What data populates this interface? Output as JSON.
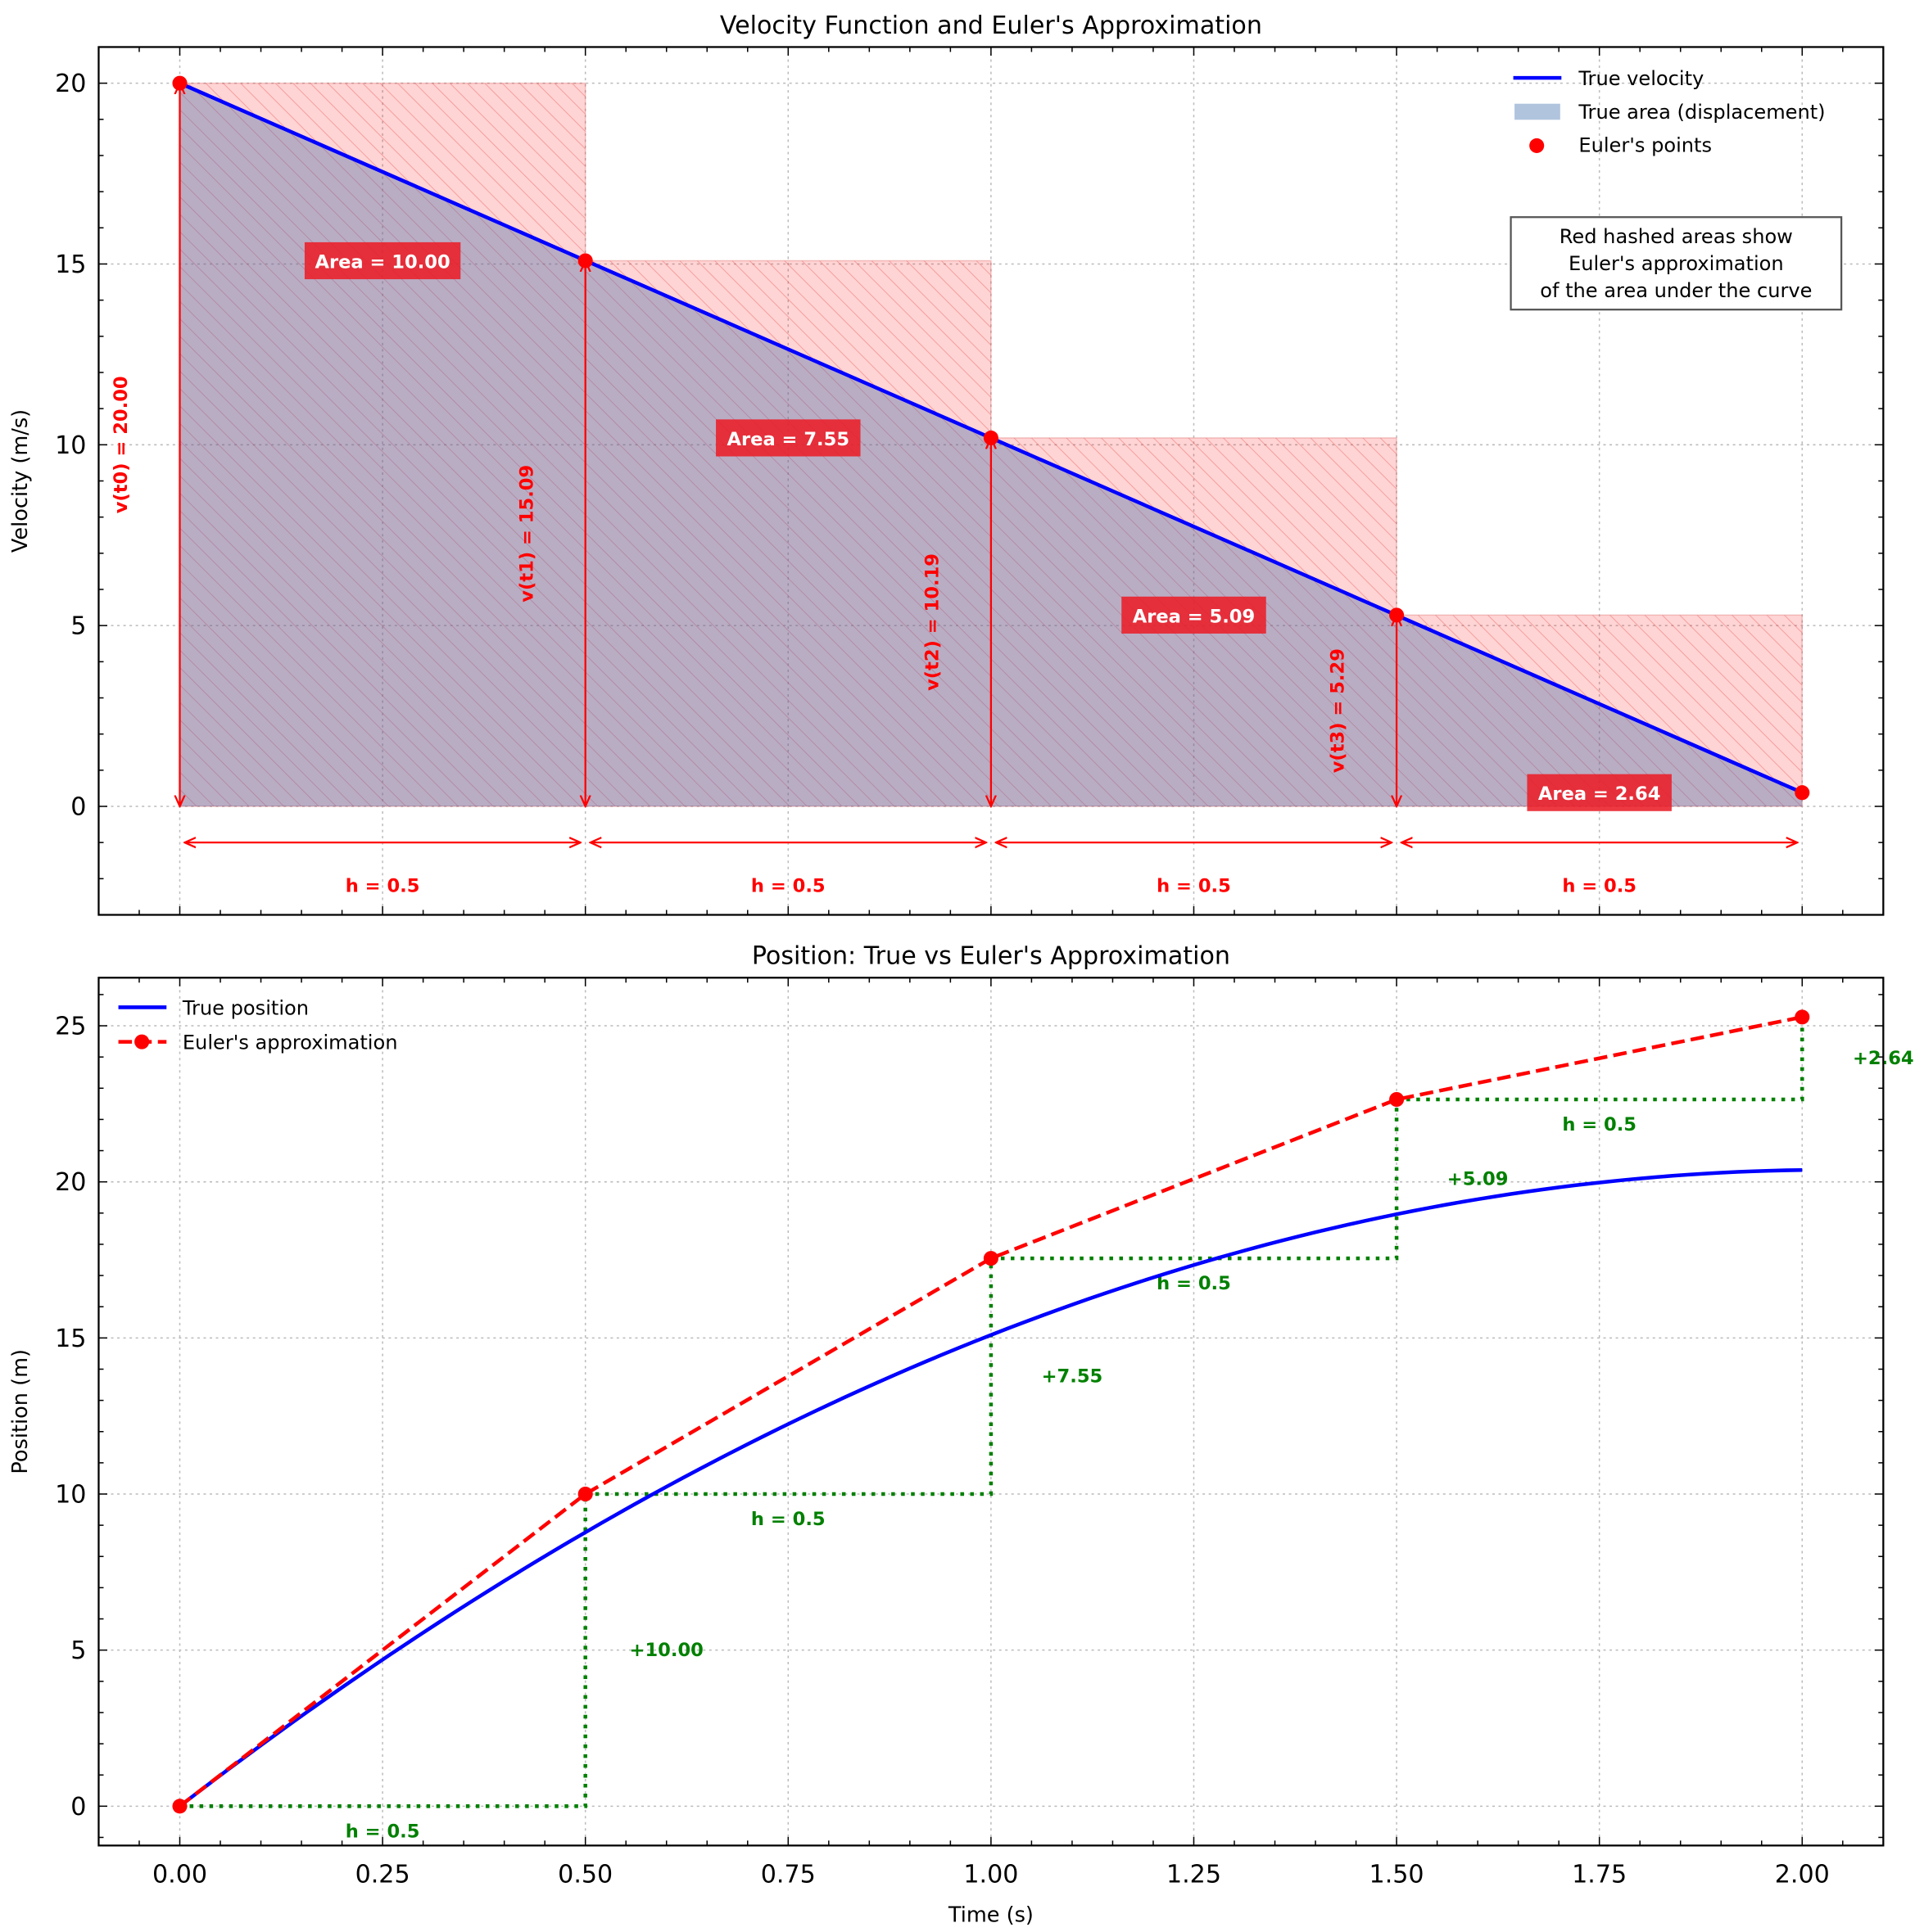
{
  "chart_data": [
    {
      "type": "line",
      "title": "Velocity Function and Euler's Approximation",
      "xlabel": "",
      "ylabel": "Velocity (m/s)",
      "xlim": [
        -0.1,
        2.1
      ],
      "ylim": [
        -3,
        21
      ],
      "xticks": [
        0,
        0.25,
        0.5,
        0.75,
        1.0,
        1.25,
        1.5,
        1.75,
        2.0
      ],
      "yticks": [
        0,
        5,
        10,
        15,
        20
      ],
      "ytick_labels": [
        "0",
        "5",
        "10",
        "15",
        "20"
      ],
      "grid": true,
      "legend_position": "top-right",
      "legend": [
        "True velocity",
        "True area (displacement)",
        "Euler's points"
      ],
      "true_velocity": {
        "x": [
          0,
          2.0
        ],
        "y": [
          20,
          0.38
        ]
      },
      "euler_points": {
        "x": [
          0,
          0.5,
          1.0,
          1.5,
          2.0
        ],
        "y": [
          20.0,
          15.09,
          10.19,
          5.29,
          0.38
        ]
      },
      "rect_areas": [
        "Area = 10.00",
        "Area = 7.55",
        "Area = 5.09",
        "Area = 2.64"
      ],
      "value_labels": [
        "v(t0) = 20.00",
        "v(t1) = 15.09",
        "v(t2) = 10.19",
        "v(t3) = 5.29"
      ],
      "step_label": "h = 0.5",
      "note": [
        "Red hashed areas show",
        "Euler's approximation",
        "of the area under the curve"
      ],
      "colors": {
        "true": "#0000ff",
        "area": "#b0c4de",
        "euler": "#ff0000"
      }
    },
    {
      "type": "line",
      "title": "Position: True vs Euler's Approximation",
      "xlabel": "Time (s)",
      "ylabel": "Position (m)",
      "xlim": [
        -0.1,
        2.1
      ],
      "ylim": [
        -1.26,
        26.54
      ],
      "xticks": [
        0,
        0.25,
        0.5,
        0.75,
        1.0,
        1.25,
        1.5,
        1.75,
        2.0
      ],
      "xtick_labels": [
        "0.00",
        "0.25",
        "0.50",
        "0.75",
        "1.00",
        "1.25",
        "1.50",
        "1.75",
        "2.00"
      ],
      "yticks": [
        0,
        5,
        10,
        15,
        20,
        25
      ],
      "ytick_labels": [
        "0",
        "5",
        "10",
        "15",
        "20",
        "25"
      ],
      "grid": true,
      "legend_position": "top-left",
      "legend": [
        "True position",
        "Euler's approximation"
      ],
      "true_position": {
        "formula": "20t - 4.905t^2",
        "x_range": [
          0,
          2.0
        ]
      },
      "euler": {
        "x": [
          0,
          0.5,
          1.0,
          1.5,
          2.0
        ],
        "y": [
          0,
          10.0,
          17.55,
          22.64,
          25.28
        ]
      },
      "increments": [
        "+10.00",
        "+7.55",
        "+5.09",
        "+2.64"
      ],
      "step_label": "h = 0.5",
      "colors": {
        "true": "#0000ff",
        "euler": "#ff0000",
        "steps": "#008000"
      }
    }
  ]
}
